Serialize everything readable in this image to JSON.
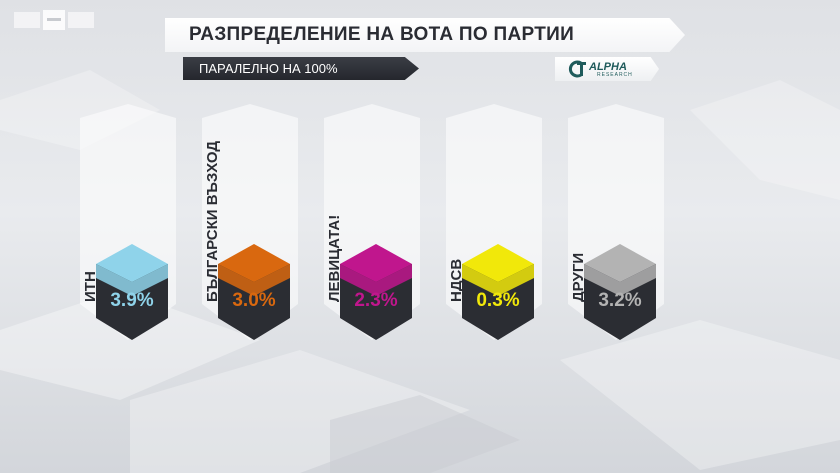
{
  "header": {
    "title": "РАЗПРЕДЕЛЕНИЕ НА ВОТА ПО ПАРТИИ",
    "subtitle": "ПАРАЛЕЛНО НА 100%"
  },
  "logos": {
    "broadcaster_icon": "bnt-logo",
    "pollster_icon": "alpha-research-logo",
    "pollster_brand": "ALPHA",
    "pollster_sub": "RESEARCH"
  },
  "chart_data": {
    "type": "bar",
    "title": "РАЗПРЕДЕЛЕНИЕ НА ВОТА ПО ПАРТИИ",
    "subtitle": "ПАРАЛЕЛНО НА 100%",
    "categories": [
      "ИТН",
      "БЪЛГАРСКИ ВЪЗХОД",
      "ЛЕВИЦАТА!",
      "НДСВ",
      "ДРУГИ"
    ],
    "values": [
      3.9,
      3.0,
      2.3,
      0.3,
      3.2
    ],
    "value_labels": [
      "3.9%",
      "3.0%",
      "2.3%",
      "0.3%",
      "3.2%"
    ],
    "unit": "%",
    "colors": [
      "#8fd3ea",
      "#d9680f",
      "#c0168d",
      "#f1e80a",
      "#b3b3b3"
    ],
    "grid": false,
    "legend": "none"
  }
}
